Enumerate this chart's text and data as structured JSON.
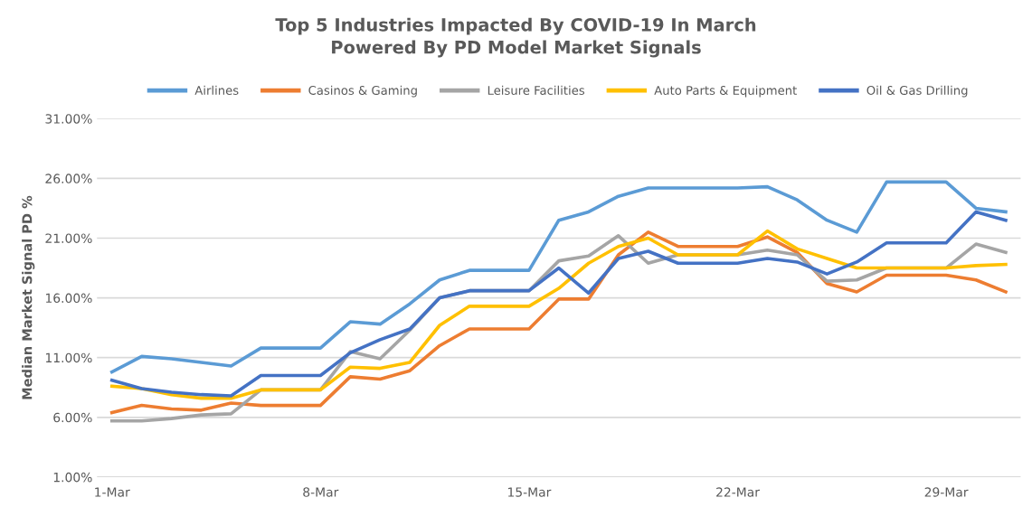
{
  "chart_data": {
    "type": "line",
    "title": "Top 5 Industries Impacted By COVID-19 In March\nPowered By PD Model Market Signals",
    "ylabel": "Median Market Signal PD %",
    "categories": [
      "1-Mar",
      null,
      null,
      null,
      null,
      null,
      null,
      "8-Mar",
      null,
      null,
      null,
      null,
      null,
      null,
      "15-Mar",
      null,
      null,
      null,
      null,
      null,
      null,
      "22-Mar",
      null,
      null,
      null,
      null,
      null,
      null,
      "29-Mar",
      null,
      null
    ],
    "series": [
      {
        "name": "Airlines",
        "color": "#5b9bd5",
        "values": [
          9.8,
          11.1,
          10.9,
          10.6,
          10.3,
          11.8,
          11.8,
          11.8,
          14.0,
          13.8,
          15.5,
          17.5,
          18.3,
          18.3,
          18.3,
          22.5,
          23.2,
          24.5,
          25.2,
          25.2,
          25.2,
          25.2,
          25.3,
          24.2,
          22.5,
          21.5,
          25.7,
          25.7,
          25.7,
          23.5,
          23.2
        ]
      },
      {
        "name": "Casinos & Gaming",
        "color": "#ed7d31",
        "values": [
          6.4,
          7.0,
          6.7,
          6.6,
          7.2,
          7.0,
          7.0,
          7.0,
          9.4,
          9.2,
          9.9,
          12.0,
          13.4,
          13.4,
          13.4,
          15.9,
          15.9,
          19.6,
          21.5,
          20.3,
          20.3,
          20.3,
          21.1,
          19.8,
          17.2,
          16.5,
          17.9,
          17.9,
          17.9,
          17.5,
          16.5
        ]
      },
      {
        "name": "Leisure Facilities",
        "color": "#a5a5a5",
        "values": [
          5.7,
          5.7,
          5.9,
          6.2,
          6.3,
          8.3,
          8.3,
          8.3,
          11.5,
          10.9,
          13.3,
          16.0,
          16.6,
          16.6,
          16.6,
          19.1,
          19.5,
          21.2,
          18.9,
          19.6,
          19.6,
          19.6,
          20.0,
          19.6,
          17.4,
          17.5,
          18.5,
          18.5,
          18.5,
          20.5,
          19.8
        ]
      },
      {
        "name": "Auto Parts & Equipment",
        "color": "#ffc000",
        "values": [
          8.6,
          8.4,
          7.9,
          7.6,
          7.6,
          8.3,
          8.3,
          8.3,
          10.2,
          10.1,
          10.6,
          13.7,
          15.3,
          15.3,
          15.3,
          16.8,
          18.9,
          20.3,
          21.0,
          19.6,
          19.6,
          19.6,
          21.6,
          20.1,
          19.3,
          18.5,
          18.5,
          18.5,
          18.5,
          18.7,
          18.8
        ]
      },
      {
        "name": "Oil & Gas Drilling",
        "color": "#4472c4",
        "values": [
          9.1,
          8.4,
          8.1,
          7.9,
          7.8,
          9.5,
          9.5,
          9.5,
          11.4,
          12.5,
          13.4,
          16.0,
          16.6,
          16.6,
          16.6,
          18.5,
          16.4,
          19.3,
          19.9,
          18.9,
          18.9,
          18.9,
          19.3,
          19.0,
          18.0,
          19.0,
          20.6,
          20.6,
          20.6,
          23.2,
          22.5
        ]
      }
    ],
    "ylim": [
      1,
      31
    ],
    "yticks": [
      {
        "value": 1,
        "label": "1.00%"
      },
      {
        "value": 6,
        "label": "6.00%"
      },
      {
        "value": 11,
        "label": "11.00%"
      },
      {
        "value": 16,
        "label": "16.00%"
      },
      {
        "value": 21,
        "label": "21.00%"
      },
      {
        "value": 26,
        "label": "26.00%"
      },
      {
        "value": 31,
        "label": "31.00%"
      }
    ],
    "grid": "y",
    "legend": "top",
    "marker": "none",
    "line_style": "solid"
  }
}
